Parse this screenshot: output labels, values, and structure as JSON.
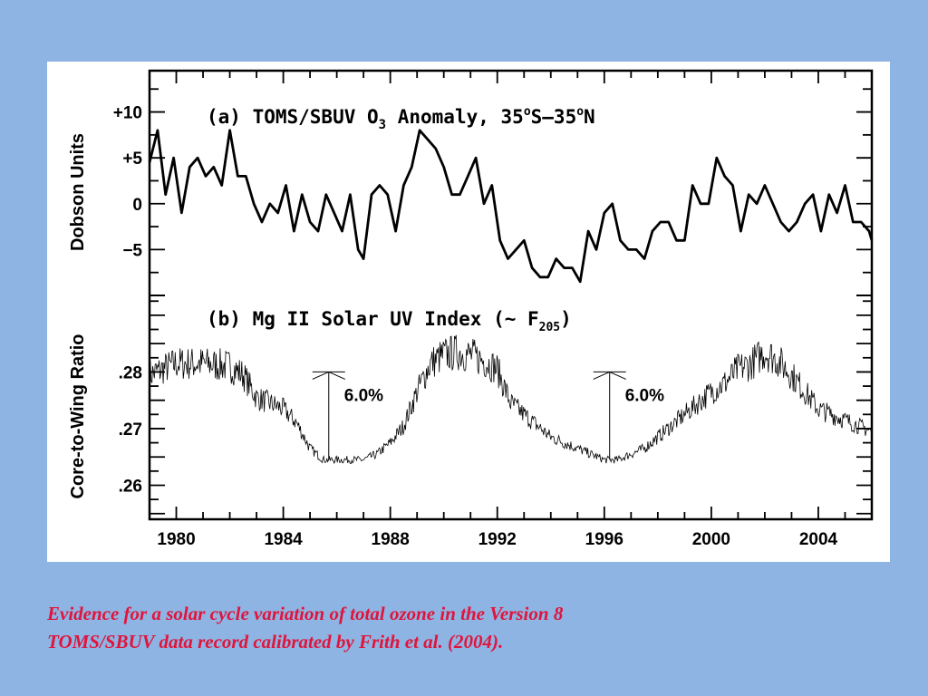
{
  "caption": {
    "line1": "Evidence for a solar cycle variation of total ozone in the Version 8",
    "line2": "TOMS/SBUV data record calibrated by Frith et al. (2004)."
  },
  "colors": {
    "background": "#8eb4e3",
    "panel": "#ffffff",
    "ink": "#000000",
    "caption": "#e0143c"
  },
  "chart_data": [
    {
      "type": "line",
      "panel_label": "(a)",
      "title": "TOMS/SBUV O3 Anomaly, 35°S–35°N",
      "title_parts": {
        "pre": "(a) TOMS/SBUV O",
        "sub": "3",
        "post": " Anomaly, 35",
        "deg1": "o",
        "mid": "S–35",
        "deg2": "o",
        "end": "N"
      },
      "ylabel": "Dobson Units",
      "ylim": [
        -10,
        14.5
      ],
      "yticks": [
        10,
        5,
        0,
        -5
      ],
      "ytick_labels": [
        "+10",
        "+5",
        "0",
        "−5"
      ],
      "xlim": [
        1979,
        2006
      ],
      "series": [
        {
          "x": [
            1979.0,
            1979.3,
            1979.6,
            1979.9,
            1980.2,
            1980.5,
            1980.8,
            1981.1,
            1981.4,
            1981.7,
            1982.0,
            1982.3,
            1982.6,
            1982.9,
            1983.2,
            1983.5,
            1983.8,
            1984.1,
            1984.4,
            1984.7,
            1985.0,
            1985.3,
            1985.6,
            1985.9,
            1986.2,
            1986.5,
            1986.8,
            1987.0,
            1987.3,
            1987.6,
            1987.9,
            1988.2,
            1988.5,
            1988.8,
            1989.1,
            1989.4,
            1989.7,
            1990.0,
            1990.3,
            1990.6,
            1990.9,
            1991.2,
            1991.5,
            1991.8,
            1992.1,
            1992.4,
            1992.7,
            1993.0,
            1993.3,
            1993.6,
            1993.9,
            1994.2,
            1994.5,
            1994.8,
            1995.1,
            1995.4,
            1995.7,
            1996.0,
            1996.3,
            1996.6,
            1996.9,
            1997.2,
            1997.5,
            1997.8,
            1998.1,
            1998.4,
            1998.7,
            1999.0,
            1999.3,
            1999.6,
            1999.9,
            2000.2,
            2000.5,
            2000.8,
            2001.1,
            2001.4,
            2001.7,
            2002.0,
            2002.3,
            2002.6,
            2002.9,
            2003.2,
            2003.5,
            2003.8,
            2004.1,
            2004.4,
            2004.7,
            2005.0,
            2005.3,
            2005.6,
            2005.9,
            2006.0
          ],
          "values": [
            4.5,
            8,
            1,
            5,
            -1,
            4,
            5,
            3,
            4,
            2,
            8,
            3,
            3,
            0,
            -2,
            0,
            -1,
            2,
            -3,
            1,
            -2,
            -3,
            1,
            -1,
            -3,
            1,
            -5,
            -6,
            1,
            2,
            1,
            -3,
            2,
            4,
            8,
            7,
            6,
            4,
            1,
            1,
            3,
            5,
            0,
            2,
            -4,
            -6,
            -5,
            -4,
            -7,
            -8,
            -8,
            -6,
            -7,
            -7,
            -8.5,
            -3,
            -5,
            -1,
            0,
            -4,
            -5,
            -5,
            -6,
            -3,
            -2,
            -2,
            -4,
            -4,
            2,
            0,
            0,
            5,
            3,
            2,
            -3,
            1,
            0,
            2,
            0,
            -2,
            -3,
            -2,
            0,
            1,
            -3,
            1,
            -1,
            2,
            -2,
            -2,
            -3,
            -4
          ]
        }
      ]
    },
    {
      "type": "line",
      "panel_label": "(b)",
      "title": "Mg II Solar UV Index (~ F205)",
      "title_parts": {
        "pre": "(b) Mg II Solar UV Index (~ F",
        "sub": "205",
        "post": ")"
      },
      "ylabel": "Core-to-Wing Ratio",
      "ylim": [
        0.254,
        0.2935
      ],
      "yticks": [
        0.28,
        0.27,
        0.26
      ],
      "ytick_labels": [
        ".28",
        ".27",
        ".26"
      ],
      "xlim": [
        1979,
        2006
      ],
      "xticks": [
        1980,
        1984,
        1988,
        1992,
        1996,
        2000,
        2004
      ],
      "xtick_labels": [
        "1980",
        "1984",
        "1988",
        "1992",
        "1996",
        "2000",
        "2004"
      ],
      "series": [
        {
          "x": [
            1979.0,
            1980.0,
            1981.0,
            1982.0,
            1982.5,
            1983.0,
            1983.5,
            1984.0,
            1984.5,
            1985.0,
            1985.5,
            1986.0,
            1986.5,
            1987.0,
            1987.5,
            1988.0,
            1988.5,
            1989.0,
            1989.5,
            1990.0,
            1990.5,
            1991.0,
            1991.5,
            1992.0,
            1992.5,
            1993.0,
            1993.5,
            1994.0,
            1994.5,
            1995.0,
            1995.5,
            1996.0,
            1996.5,
            1997.0,
            1997.5,
            1998.0,
            1998.5,
            1999.0,
            1999.5,
            2000.0,
            2000.5,
            2001.0,
            2001.5,
            2002.0,
            2002.5,
            2003.0,
            2003.5,
            2004.0,
            2004.5,
            2005.0,
            2005.5,
            2006.0
          ],
          "values": [
            0.2795,
            0.2815,
            0.2815,
            0.281,
            0.2795,
            0.2755,
            0.2745,
            0.2735,
            0.271,
            0.2665,
            0.2645,
            0.2645,
            0.2645,
            0.2645,
            0.2655,
            0.2675,
            0.2705,
            0.2765,
            0.2815,
            0.283,
            0.2835,
            0.283,
            0.282,
            0.2805,
            0.2745,
            0.2725,
            0.2705,
            0.2685,
            0.2675,
            0.2665,
            0.2655,
            0.2645,
            0.2645,
            0.2655,
            0.2665,
            0.2685,
            0.2705,
            0.2725,
            0.2745,
            0.2765,
            0.278,
            0.2805,
            0.2815,
            0.2835,
            0.282,
            0.2795,
            0.2765,
            0.2735,
            0.2725,
            0.2715,
            0.2705,
            0.2695
          ]
        }
      ],
      "annotations": [
        {
          "x": 1985.7,
          "y_top": 0.28,
          "y_bottom": 0.2645,
          "text": "6.0%"
        },
        {
          "x": 1996.2,
          "y_top": 0.28,
          "y_bottom": 0.2645,
          "text": "6.0%"
        }
      ]
    }
  ]
}
